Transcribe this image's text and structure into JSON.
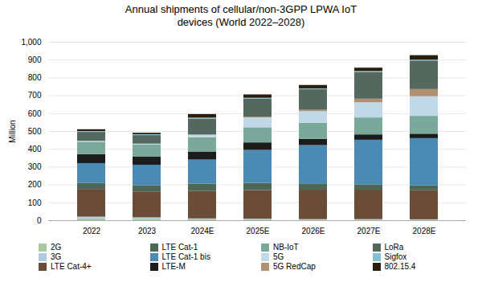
{
  "chart_data": {
    "type": "bar",
    "stacked": true,
    "title": "Annual shipments of cellular/non-3GPP LPWA IoT\ndevices (World 2022–2028)",
    "ylabel": "Million",
    "categories": [
      "2022",
      "2023",
      "2024E",
      "2025E",
      "2026E",
      "2027E",
      "2028E"
    ],
    "series": [
      {
        "name": "2G",
        "color": "#a8c8a0",
        "values": [
          10,
          8,
          5,
          5,
          3,
          3,
          3
        ]
      },
      {
        "name": "3G",
        "color": "#b0cce0",
        "values": [
          10,
          8,
          5,
          4,
          3,
          3,
          2
        ]
      },
      {
        "name": "LTE Cat-4+",
        "color": "#6b4c38",
        "values": [
          155,
          145,
          155,
          160,
          165,
          165,
          165
        ]
      },
      {
        "name": "LTE Cat-1",
        "color": "#4a6855",
        "values": [
          35,
          35,
          40,
          40,
          35,
          30,
          25
        ]
      },
      {
        "name": "LTE Cat-1 bis",
        "color": "#4a8ab5",
        "values": [
          110,
          115,
          135,
          185,
          215,
          250,
          265
        ]
      },
      {
        "name": "LTE-M",
        "color": "#1c1c1c",
        "values": [
          50,
          45,
          45,
          42,
          35,
          30,
          25
        ]
      },
      {
        "name": "NB-IoT",
        "color": "#7aa89a",
        "values": [
          70,
          68,
          80,
          85,
          90,
          95,
          100
        ]
      },
      {
        "name": "5G",
        "color": "#c0d8e8",
        "values": [
          5,
          5,
          15,
          55,
          65,
          85,
          110
        ]
      },
      {
        "name": "5G RedCap",
        "color": "#b09070",
        "values": [
          0,
          0,
          0,
          5,
          8,
          20,
          40
        ]
      },
      {
        "name": "LoRa",
        "color": "#556860",
        "values": [
          50,
          48,
          90,
          100,
          115,
          150,
          160
        ]
      },
      {
        "name": "Sigfox",
        "color": "#80c0d0",
        "values": [
          5,
          5,
          5,
          5,
          5,
          5,
          5
        ]
      },
      {
        "name": "802.15.4",
        "color": "#2a1e10",
        "values": [
          10,
          8,
          20,
          19,
          19,
          19,
          25
        ]
      }
    ],
    "ylim": [
      0,
      1000
    ],
    "yticks": [
      0,
      100,
      200,
      300,
      400,
      500,
      600,
      700,
      800,
      900,
      {
        "value": 1000,
        "label": "1,000"
      }
    ],
    "grid": true,
    "legend": "bottom"
  }
}
